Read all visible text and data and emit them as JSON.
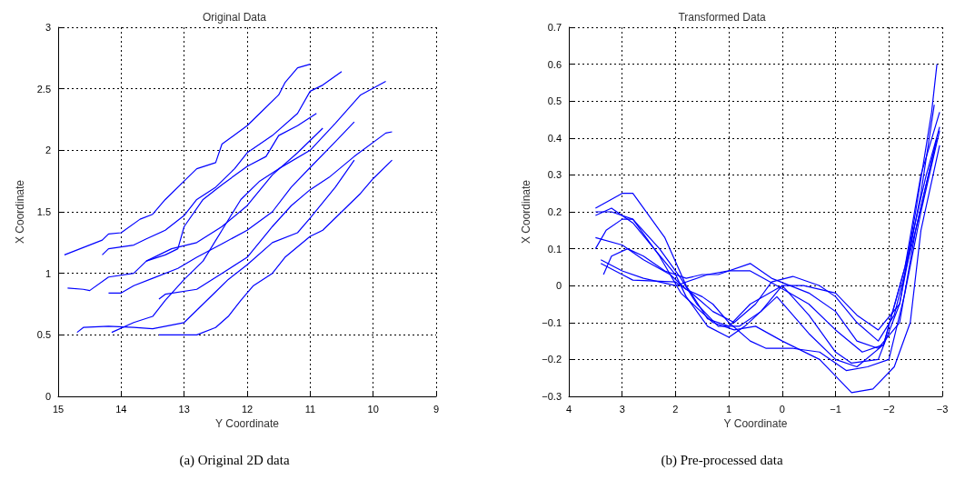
{
  "chart_data": [
    {
      "type": "line",
      "title": "Original Data",
      "xlabel": "Y Coordinate",
      "ylabel": "X Coordinate",
      "annotations": [
        "(a) Original 2D data"
      ],
      "xlim": [
        15,
        9
      ],
      "xticks": [
        15,
        14,
        13,
        12,
        11,
        10,
        9
      ],
      "ylim": [
        0,
        3
      ],
      "yticks": [
        0,
        0.5,
        1,
        1.5,
        2,
        2.5,
        3
      ],
      "grid": true,
      "series": [
        {
          "color": "#0000ff",
          "x": [
            14.9,
            14.3,
            14.2,
            14.0,
            13.7,
            13.5,
            13.3,
            13.0,
            12.8,
            12.5,
            12.4,
            12.0,
            11.8,
            11.5,
            11.4,
            11.2,
            11.0
          ],
          "values": [
            1.15,
            1.27,
            1.32,
            1.33,
            1.44,
            1.48,
            1.6,
            1.75,
            1.85,
            1.9,
            2.05,
            2.2,
            2.3,
            2.45,
            2.55,
            2.67,
            2.7
          ]
        },
        {
          "color": "#0000ff",
          "x": [
            14.3,
            14.2,
            13.8,
            13.6,
            13.3,
            13.0,
            12.8,
            12.5,
            12.2,
            12.0,
            11.6,
            11.2,
            11.0,
            10.8,
            10.5
          ],
          "values": [
            1.15,
            1.2,
            1.23,
            1.28,
            1.35,
            1.47,
            1.6,
            1.7,
            1.85,
            1.98,
            2.12,
            2.3,
            2.48,
            2.53,
            2.64
          ]
        },
        {
          "color": "#0000ff",
          "x": [
            14.85,
            14.6,
            14.5,
            14.2,
            13.8,
            13.6,
            13.3,
            13.1,
            13.0,
            12.7,
            12.4,
            12.0,
            11.7,
            11.5,
            11.2,
            10.9
          ],
          "values": [
            0.88,
            0.87,
            0.86,
            0.97,
            1.0,
            1.1,
            1.15,
            1.2,
            1.38,
            1.6,
            1.72,
            1.87,
            1.95,
            2.12,
            2.2,
            2.3
          ]
        },
        {
          "color": "#0000ff",
          "x": [
            14.2,
            14.0,
            13.8,
            13.5,
            13.1,
            12.8,
            12.4,
            12.0,
            11.6,
            11.3,
            11.0,
            10.6,
            10.3
          ],
          "values": [
            0.84,
            0.84,
            0.9,
            0.96,
            1.04,
            1.13,
            1.24,
            1.35,
            1.5,
            1.7,
            1.86,
            2.07,
            2.23
          ]
        },
        {
          "color": "#0000ff",
          "x": [
            13.4,
            13.3,
            12.8,
            12.4,
            12.0,
            11.6,
            11.3,
            11.0,
            10.7,
            10.3,
            9.8,
            9.7
          ],
          "values": [
            0.79,
            0.83,
            0.87,
            1.0,
            1.13,
            1.38,
            1.55,
            1.68,
            1.78,
            1.95,
            2.14,
            2.15
          ]
        },
        {
          "color": "#0000ff",
          "x": [
            14.7,
            14.6,
            14.2,
            13.8,
            13.5,
            13.0,
            12.8,
            12.5,
            12.3,
            12.0,
            11.6,
            11.2,
            11.0,
            10.6,
            10.3
          ],
          "values": [
            0.52,
            0.56,
            0.57,
            0.56,
            0.55,
            0.6,
            0.7,
            0.85,
            0.95,
            1.07,
            1.25,
            1.33,
            1.45,
            1.7,
            1.92
          ]
        },
        {
          "color": "#0000ff",
          "x": [
            14.15,
            13.8,
            13.5,
            13.3,
            13.0,
            12.7,
            12.4,
            12.1,
            11.8,
            11.5,
            11.0,
            10.6,
            10.2,
            9.8
          ],
          "values": [
            0.52,
            0.6,
            0.65,
            0.78,
            0.95,
            1.1,
            1.35,
            1.6,
            1.75,
            1.85,
            2.0,
            2.22,
            2.45,
            2.56
          ]
        },
        {
          "color": "#0000ff",
          "x": [
            13.4,
            12.8,
            12.5,
            12.3,
            12.1,
            11.9,
            11.6,
            11.4,
            11.0,
            10.8,
            10.5,
            10.2,
            10.0,
            9.7
          ],
          "values": [
            0.5,
            0.5,
            0.56,
            0.65,
            0.78,
            0.9,
            1.0,
            1.13,
            1.3,
            1.35,
            1.5,
            1.65,
            1.77,
            1.92
          ]
        },
        {
          "color": "#0000ff",
          "x": [
            13.6,
            13.2,
            12.8,
            12.4,
            12.0,
            11.6,
            11.2,
            10.8
          ],
          "values": [
            1.1,
            1.2,
            1.25,
            1.38,
            1.55,
            1.8,
            1.98,
            2.18
          ]
        }
      ]
    },
    {
      "type": "line",
      "title": "Transformed Data",
      "xlabel": "Y Coordinate",
      "ylabel": "X Coordinate",
      "annotations": [
        "(b) Pre-processed data"
      ],
      "xlim": [
        4,
        -3
      ],
      "xticks": [
        4,
        3,
        2,
        1,
        0,
        {
          "value": -1,
          "label": "−1"
        },
        {
          "value": -2,
          "label": "−2"
        },
        {
          "value": -3,
          "label": "−3"
        }
      ],
      "ylim": [
        -0.3,
        0.7
      ],
      "yticks": [
        {
          "value": -0.3,
          "label": "−0.3"
        },
        {
          "value": -0.2,
          "label": "−0.2"
        },
        {
          "value": -0.1,
          "label": "−0.1"
        },
        0,
        0.1,
        0.2,
        0.3,
        0.4,
        0.5,
        0.6,
        0.7
      ],
      "grid": true,
      "series": [
        {
          "color": "#0000ff",
          "x": [
            3.5,
            3.0,
            2.8,
            2.2,
            1.8,
            1.4,
            1.0,
            0.6,
            0.0,
            -0.4,
            -1.0,
            -1.4,
            -1.8,
            -2.2,
            -2.5,
            -2.8,
            -2.9
          ],
          "values": [
            0.21,
            0.25,
            0.25,
            0.13,
            0.0,
            -0.09,
            -0.11,
            -0.05,
            0.0,
            0.0,
            -0.02,
            -0.08,
            -0.12,
            -0.05,
            0.2,
            0.47,
            0.6
          ]
        },
        {
          "color": "#0000ff",
          "x": [
            3.5,
            3.2,
            2.8,
            2.3,
            1.9,
            1.6,
            1.2,
            0.8,
            0.4,
            0.0,
            -0.5,
            -1.0,
            -1.3,
            -1.8,
            -2.2,
            -2.6,
            -2.85
          ],
          "values": [
            0.2,
            0.2,
            0.18,
            0.1,
            0.02,
            -0.05,
            -0.11,
            -0.11,
            -0.07,
            0.0,
            -0.08,
            -0.18,
            -0.21,
            -0.2,
            -0.05,
            0.25,
            0.49
          ]
        },
        {
          "color": "#0000ff",
          "x": [
            3.5,
            3.2,
            2.8,
            2.0,
            1.8,
            1.4,
            1.0,
            0.7,
            0.1,
            -0.5,
            -1.0,
            -1.4,
            -1.9,
            -2.3,
            -2.6,
            -2.95
          ],
          "values": [
            0.19,
            0.21,
            0.17,
            0.03,
            -0.03,
            -0.11,
            -0.14,
            -0.11,
            -0.03,
            -0.13,
            -0.2,
            -0.22,
            -0.16,
            0.05,
            0.3,
            0.47
          ]
        },
        {
          "color": "#0000ff",
          "x": [
            3.5,
            3.3,
            3.0,
            2.8,
            2.3,
            1.9,
            1.3,
            0.9,
            0.5,
            0.0,
            -0.7,
            -1.3,
            -1.7,
            -2.1,
            -2.4,
            -2.6,
            -2.95
          ],
          "values": [
            0.1,
            0.15,
            0.18,
            0.18,
            0.08,
            -0.02,
            -0.1,
            -0.12,
            -0.11,
            -0.15,
            -0.2,
            -0.29,
            -0.28,
            -0.22,
            -0.1,
            0.15,
            0.38
          ]
        },
        {
          "color": "#0000ff",
          "x": [
            3.5,
            3.0,
            2.6,
            2.1,
            1.8,
            1.5,
            1.3,
            1.0,
            0.6,
            0.3,
            -0.2,
            -0.7,
            -1.2,
            -1.6,
            -2.0,
            -2.3,
            -2.6,
            -2.95
          ],
          "values": [
            0.13,
            0.11,
            0.07,
            0.03,
            -0.01,
            -0.03,
            -0.05,
            -0.1,
            -0.15,
            -0.17,
            -0.17,
            -0.18,
            -0.23,
            -0.22,
            -0.2,
            -0.02,
            0.2,
            0.42
          ]
        },
        {
          "color": "#0000ff",
          "x": [
            3.4,
            3.0,
            2.6,
            2.0,
            1.4,
            1.0,
            0.6,
            0.1,
            -0.5,
            -1.0,
            -1.5,
            -1.9,
            -2.3,
            -2.7,
            -2.95
          ],
          "values": [
            0.07,
            0.04,
            0.02,
            0.0,
            0.03,
            0.04,
            0.04,
            0.0,
            -0.05,
            -0.12,
            -0.18,
            -0.16,
            0.05,
            0.3,
            0.43
          ]
        },
        {
          "color": "#0000ff",
          "x": [
            3.35,
            3.2,
            2.9,
            2.6,
            2.2,
            1.8,
            1.5,
            1.2,
            0.6,
            0.2,
            -0.5,
            -1.0,
            -1.4,
            -1.8,
            -2.2,
            -2.5,
            -2.9
          ],
          "values": [
            0.03,
            0.08,
            0.1,
            0.08,
            0.04,
            0.02,
            0.03,
            0.03,
            0.06,
            0.02,
            -0.02,
            -0.07,
            -0.15,
            -0.17,
            -0.1,
            0.15,
            0.4
          ]
        },
        {
          "color": "#0000ff",
          "x": [
            3.4,
            3.0,
            2.8,
            2.0,
            1.7,
            1.3,
            0.9,
            0.5,
            0.2,
            -0.2,
            -0.7,
            -1.0,
            -1.4,
            -1.8,
            -2.1,
            -2.5,
            -2.9
          ],
          "values": [
            0.06,
            0.03,
            0.015,
            0.01,
            -0.02,
            -0.07,
            -0.1,
            -0.05,
            0.01,
            0.025,
            0.0,
            -0.03,
            -0.1,
            -0.15,
            -0.08,
            0.15,
            0.4
          ]
        }
      ]
    }
  ]
}
